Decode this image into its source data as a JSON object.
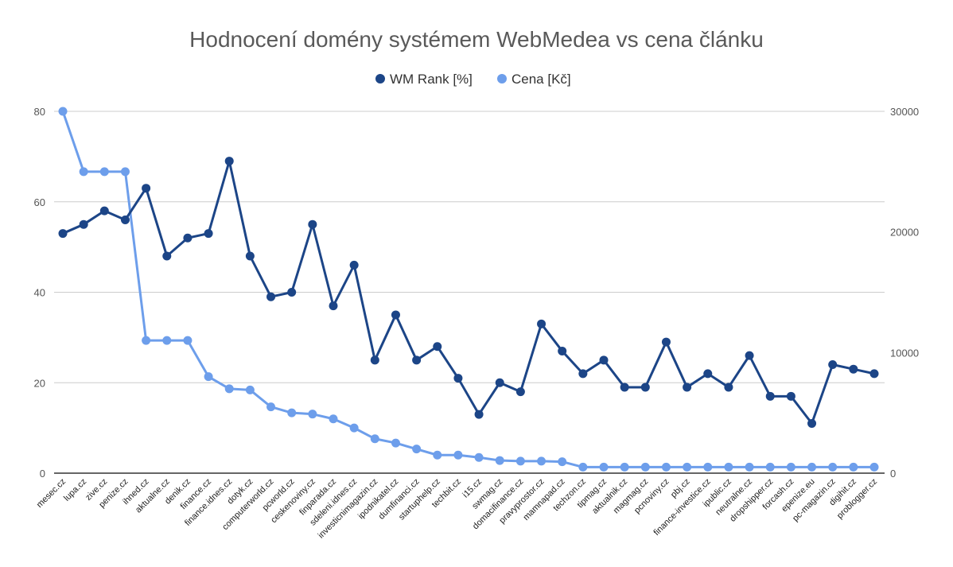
{
  "chart_data": {
    "type": "line",
    "title": "Hodnocení domény systémem WebMedea vs cena článku",
    "legend_position": "top",
    "grid": true,
    "categories": [
      "mesec.cz",
      "lupa.cz",
      "zive.cz",
      "penize.cz",
      "ihned.cz",
      "aktualne.cz",
      "denik.cz",
      "finance.cz",
      "finance.idnes.cz",
      "dotyk.cz",
      "computerworld.cz",
      "pcworld.cz",
      "ceskenoviny.cz",
      "finparada.cz",
      "sdeleni.idnes.cz",
      "investicnimagazin.cz",
      "ipodnikatel.cz",
      "dumfinanci.cz",
      "startuphelp.cz",
      "techbit.cz",
      "i15.cz",
      "swmag.cz",
      "domacifinance.cz",
      "pravyprostor.cz",
      "mamnapad.cz",
      "techzon.cz",
      "tipmag.cz",
      "aktualnik.cz",
      "magmag.cz",
      "pcnoviny.cz",
      "pbj.cz",
      "finance-investice.cz",
      "ipublic.cz",
      "neutralne.cz",
      "dropshipper.cz",
      "forcash.cz",
      "epenize.eu",
      "pc-magazin.cz",
      "digihit.cz",
      "problogger.cz"
    ],
    "series": [
      {
        "name": "WM Rank [%]",
        "axis": "left",
        "color": "#1c4587",
        "values": [
          53,
          55,
          58,
          56,
          63,
          48,
          52,
          53,
          69,
          48,
          39,
          40,
          55,
          37,
          46,
          25,
          35,
          25,
          28,
          21,
          13,
          20,
          18,
          33,
          27,
          22,
          25,
          19,
          19,
          29,
          19,
          22,
          19,
          26,
          17,
          17,
          11,
          24,
          23,
          22
        ]
      },
      {
        "name": "Cena [Kč]",
        "axis": "right",
        "color": "#6d9eeb",
        "values": [
          30000,
          25000,
          25000,
          25000,
          11000,
          11000,
          11000,
          8000,
          7000,
          6900,
          5500,
          5000,
          4900,
          4500,
          3750,
          2850,
          2500,
          2000,
          1500,
          1500,
          1300,
          1050,
          1000,
          1000,
          950,
          500,
          500,
          500,
          500,
          500,
          500,
          500,
          500,
          500,
          500,
          500,
          500,
          500,
          500,
          500
        ]
      }
    ],
    "y_left": {
      "min": 0,
      "max": 80,
      "ticks": [
        0,
        20,
        40,
        60,
        80
      ]
    },
    "y_right": {
      "min": 0,
      "max": 30000,
      "ticks": [
        0,
        10000,
        20000,
        30000
      ]
    }
  }
}
